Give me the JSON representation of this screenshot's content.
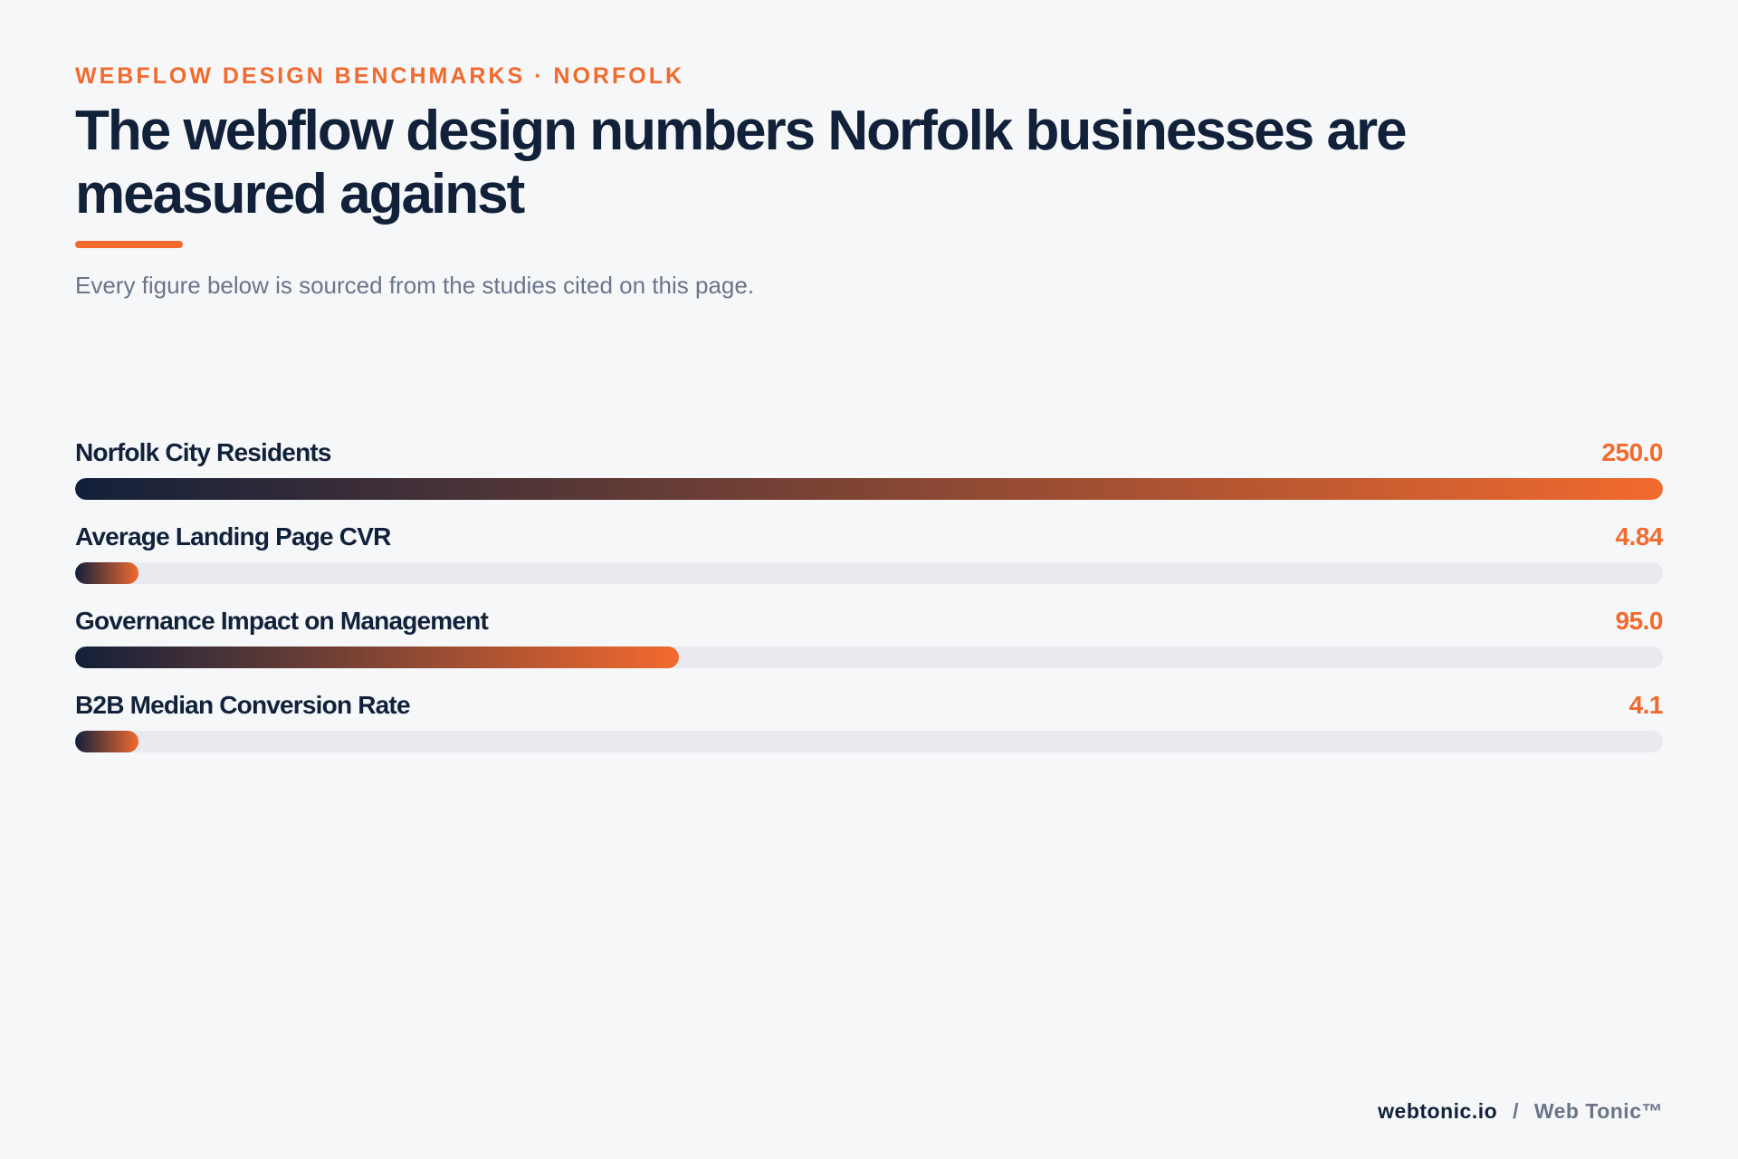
{
  "header": {
    "eyebrow": "WEBFLOW DESIGN BENCHMARKS · NORFOLK",
    "title": "The webflow design numbers Norfolk businesses are measured against",
    "subtitle": "Every figure below is sourced from the studies cited on this page."
  },
  "colors": {
    "accent": "#f26a2e",
    "navy": "#12213a",
    "track": "#e8eaf0",
    "muted": "#6a7588",
    "background": "#f6f7f9"
  },
  "chart_data": {
    "type": "bar",
    "orientation": "horizontal",
    "categories": [
      "Norfolk City Residents",
      "Average Landing Page CVR",
      "Governance Impact on Management",
      "B2B Median Conversion Rate"
    ],
    "values": [
      250.0,
      4.84,
      95.0,
      4.1
    ],
    "value_labels": [
      "250.0",
      "4.84",
      "95.0",
      "4.1"
    ],
    "xlim": [
      0,
      250
    ],
    "grid": false,
    "legend": "none"
  },
  "footer": {
    "site": "webtonic.io",
    "separator": "/",
    "brand": "Web Tonic™"
  }
}
